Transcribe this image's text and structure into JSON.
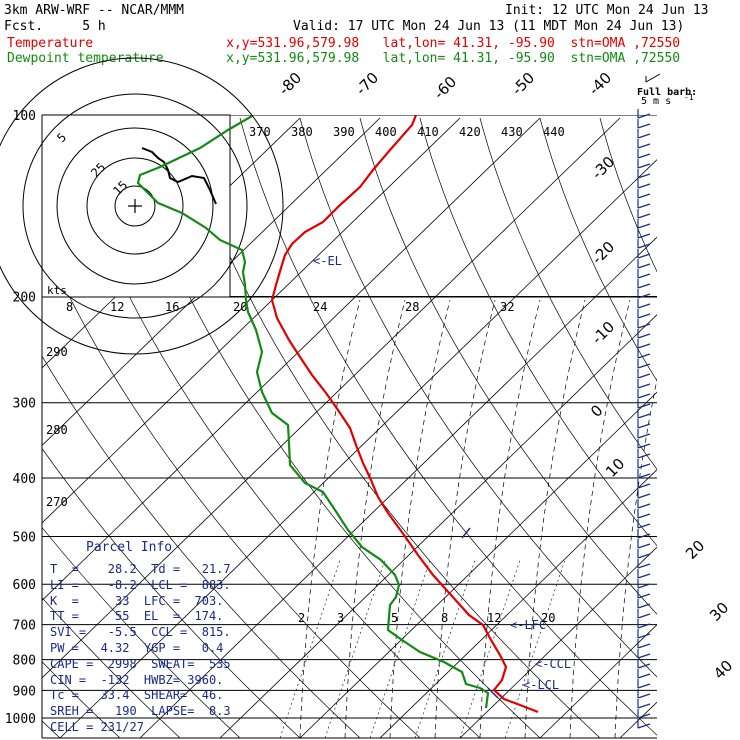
{
  "header": {
    "model": "3km ARW-WRF -- NCAR/MMM",
    "init": "Init: 12 UTC Mon 24 Jun 13",
    "fcst": "Fcst.     5 h",
    "valid": "Valid: 17 UTC Mon 24 Jun 13 (11 MDT Mon 24 Jun 13)",
    "temp_line": "Temperature                 x,y=531.96,579.98   lat,lon= 41.31, -95.90  stn=OMA ,72550",
    "dew_line": "Dewpoint temperature        x,y=531.96,579.98   lat,lon= 41.31, -95.90  stn=OMA ,72550"
  },
  "colors": {
    "temperature": "#e00000",
    "dewpoint": "#138a13",
    "annotation": "#1a2a8a",
    "hodograph": "#000000"
  },
  "chart_data": {
    "type": "skew-t",
    "pressure_levels": [
      100,
      200,
      300,
      400,
      500,
      600,
      700,
      800,
      900,
      1000
    ],
    "skewed_isotherm_labels": [
      "-80",
      "-70",
      "-60",
      "-50",
      "-40",
      "-30",
      "-20",
      "-10",
      "0",
      "10",
      "20",
      "30",
      "40"
    ],
    "theta_labels": [
      "370",
      "380",
      "390",
      "400",
      "410",
      "420",
      "430",
      "440"
    ],
    "theta_left_labels": [
      "290",
      "280",
      "270"
    ],
    "mixing_ratio_labels": [
      "2",
      "3",
      "5",
      "8",
      "12",
      "20"
    ],
    "hodograph": {
      "units": "kts",
      "ring_labels": [
        "5",
        "25",
        "15"
      ],
      "speed_labels": [
        "8",
        "12",
        "16",
        "20",
        "24",
        "28",
        "32"
      ]
    },
    "series": [
      {
        "name": "Temperature",
        "points": [
          [
            422,
            100
          ],
          [
            412,
            125
          ],
          [
            390,
            150
          ],
          [
            373,
            170
          ],
          [
            360,
            187
          ],
          [
            340,
            205
          ],
          [
            323,
            222
          ],
          [
            305,
            232
          ],
          [
            292,
            244
          ],
          [
            285,
            255
          ],
          [
            281,
            268
          ],
          [
            276,
            285
          ],
          [
            272,
            300
          ],
          [
            277,
            318
          ],
          [
            289,
            340
          ],
          [
            300,
            357
          ],
          [
            312,
            375
          ],
          [
            326,
            393
          ],
          [
            338,
            410
          ],
          [
            350,
            428
          ],
          [
            356,
            445
          ],
          [
            363,
            463
          ],
          [
            371,
            480
          ],
          [
            378,
            497
          ],
          [
            388,
            513
          ],
          [
            404,
            535
          ],
          [
            418,
            555
          ],
          [
            433,
            575
          ],
          [
            451,
            595
          ],
          [
            469,
            615
          ],
          [
            483,
            625
          ],
          [
            491,
            640
          ],
          [
            500,
            655
          ],
          [
            506,
            667
          ],
          [
            502,
            680
          ],
          [
            494,
            690
          ],
          [
            504,
            699
          ],
          [
            520,
            705
          ],
          [
            538,
            712
          ]
        ]
      },
      {
        "name": "Dewpoint temperature",
        "points": [
          [
            252,
            116
          ],
          [
            228,
            130
          ],
          [
            200,
            148
          ],
          [
            160,
            167
          ],
          [
            140,
            175
          ],
          [
            138,
            183
          ],
          [
            158,
            203
          ],
          [
            182,
            213
          ],
          [
            206,
            228
          ],
          [
            220,
            240
          ],
          [
            242,
            250
          ],
          [
            245,
            262
          ],
          [
            243,
            272
          ],
          [
            245,
            285
          ],
          [
            246,
            300
          ],
          [
            248,
            312
          ],
          [
            256,
            330
          ],
          [
            262,
            352
          ],
          [
            257,
            372
          ],
          [
            262,
            392
          ],
          [
            272,
            413
          ],
          [
            288,
            425
          ],
          [
            289,
            443
          ],
          [
            290,
            465
          ],
          [
            305,
            483
          ],
          [
            323,
            492
          ],
          [
            335,
            510
          ],
          [
            348,
            530
          ],
          [
            362,
            547
          ],
          [
            381,
            560
          ],
          [
            395,
            575
          ],
          [
            399,
            585
          ],
          [
            396,
            597
          ],
          [
            390,
            605
          ],
          [
            389,
            617
          ],
          [
            388,
            630
          ],
          [
            402,
            640
          ],
          [
            420,
            652
          ],
          [
            444,
            662
          ],
          [
            462,
            672
          ],
          [
            466,
            684
          ],
          [
            480,
            688
          ],
          [
            488,
            693
          ],
          [
            486,
            708
          ]
        ]
      }
    ],
    "annotations": {
      "el": "<-EL",
      "lfc": "<-LFC",
      "ccl": "<-CCL",
      "lcl": "<-LCL"
    }
  },
  "wind_barbs": {
    "title": "Full barb:",
    "units": "5 m s",
    "superscript": "-1"
  },
  "parcel_info": {
    "title": "Parcel Info",
    "rows": [
      "T  =    28.2  Td =   21.7",
      "LI =    -8.2  LCL =  883.",
      "K  =     33  LFC =  703.",
      "TT =     55  EL  =  174.",
      "SVI =   -5.5  CCL =  815.",
      "PW =   4.32  YGP =   0.4",
      "CAPE =  2998  SWEAT=  535",
      "CIN =  -132  HWBZ= 3960.",
      "Tc =   33.4  SHEAR=  46.",
      "SREH =   190  LAPSE=  8.3",
      "CELL = 231/27"
    ]
  }
}
